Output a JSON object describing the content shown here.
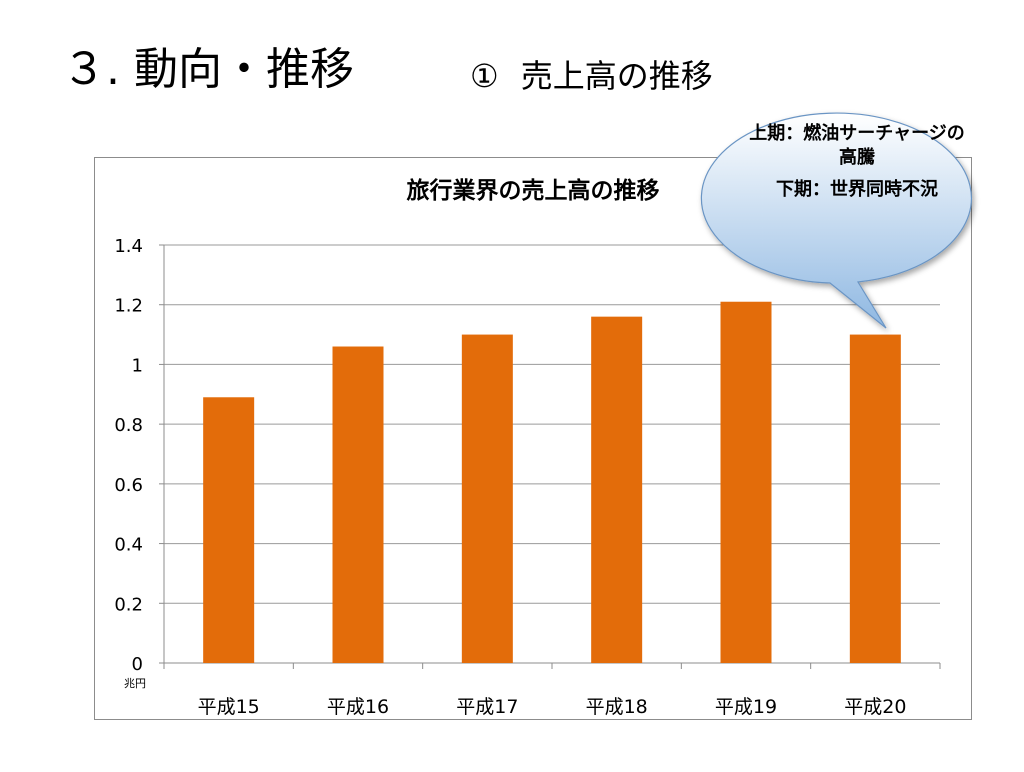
{
  "slide": {
    "title": "３. 動向・推移",
    "subtitle_num": "①",
    "subtitle": "売上高の推移"
  },
  "callout": {
    "line1": "上期：燃油サーチャージの高騰",
    "line2": "下期：世界同時不況",
    "colors": {
      "fill_top": "#ffffff",
      "fill_bottom": "#8fb8e2",
      "border": "#6b95c4"
    }
  },
  "chart_data": {
    "type": "bar",
    "title": "旅行業界の売上高の推移",
    "categories": [
      "平成15",
      "平成16",
      "平成17",
      "平成18",
      "平成19",
      "平成20"
    ],
    "values": [
      0.89,
      1.06,
      1.1,
      1.16,
      1.21,
      1.1
    ],
    "unit_label": "兆円",
    "ylim": [
      0,
      1.4
    ],
    "yticks": [
      0,
      0.2,
      0.4,
      0.6,
      0.8,
      1,
      1.2,
      1.4
    ],
    "ytick_labels": [
      "0",
      "0.2",
      "0.4",
      "0.6",
      "0.8",
      "1",
      "1.2",
      "1.4"
    ],
    "grid": true,
    "legend": "none",
    "bar_color": "#e36c0a"
  }
}
